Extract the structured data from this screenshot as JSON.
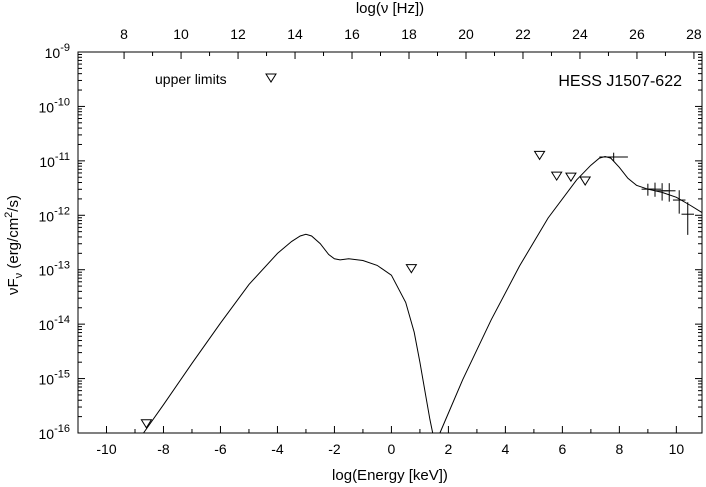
{
  "chart_data": {
    "type": "scatter",
    "title": "HESS J1507-622",
    "xlabel": "log(Energy [keV])",
    "ylabel_main": "νF",
    "ylabel_sub": "ν",
    "ylabel_units_a": " (erg/cm",
    "ylabel_units_sup": "2",
    "ylabel_units_b": "/s)",
    "top_xlabel": "log(ν [Hz])",
    "xlim": [
      -11,
      10.9
    ],
    "ylim_log10": [
      -16,
      -9
    ],
    "x_ticks": [
      -10,
      -8,
      -6,
      -4,
      -2,
      0,
      2,
      4,
      6,
      8,
      10
    ],
    "x_tick_labels": [
      "-10",
      "-8",
      "-6",
      "-4",
      "-2",
      "0",
      "2",
      "4",
      "6",
      "8",
      "10"
    ],
    "top_ticks_lognu": [
      8,
      10,
      12,
      14,
      16,
      18,
      20,
      22,
      24,
      26,
      28
    ],
    "top_tick_labels": [
      "8",
      "10",
      "12",
      "14",
      "16",
      "18",
      "20",
      "22",
      "24",
      "26",
      "28"
    ],
    "y_ticks_exp": [
      -9,
      -10,
      -11,
      -12,
      -13,
      -14,
      -15,
      -16
    ],
    "y_tick_base": "10",
    "y_tick_exps": [
      "-9",
      "-10",
      "-11",
      "-12",
      "-13",
      "-14",
      "-15",
      "-16"
    ],
    "legend": {
      "label": "upper limits",
      "position": "top-left"
    },
    "upper_limits": [
      {
        "x": -8.6,
        "log_y": -15.83
      },
      {
        "x": 0.7,
        "log_y": -12.98
      },
      {
        "x": 5.2,
        "log_y": -10.9
      },
      {
        "x": 5.8,
        "log_y": -11.28
      },
      {
        "x": 6.3,
        "log_y": -11.3
      },
      {
        "x": 6.8,
        "log_y": -11.37
      }
    ],
    "measurements": [
      {
        "x": 7.8,
        "log_y": -10.93,
        "xerr": 0.5,
        "log_yerr_low": 0.08,
        "log_yerr_high": 0.08
      },
      {
        "x": 9.0,
        "log_y": -11.52,
        "xerr": 0.22,
        "log_yerr_low": 0.12,
        "log_yerr_high": 0.1
      },
      {
        "x": 9.25,
        "log_y": -11.52,
        "xerr": 0.22,
        "log_yerr_low": 0.14,
        "log_yerr_high": 0.12
      },
      {
        "x": 9.5,
        "log_y": -11.55,
        "xerr": 0.22,
        "log_yerr_low": 0.18,
        "log_yerr_high": 0.14
      },
      {
        "x": 9.75,
        "log_y": -11.55,
        "xerr": 0.22,
        "log_yerr_low": 0.2,
        "log_yerr_high": 0.14
      },
      {
        "x": 10.1,
        "log_y": -11.72,
        "xerr": 0.22,
        "log_yerr_low": 0.25,
        "log_yerr_high": 0.18
      },
      {
        "x": 10.4,
        "log_y": -11.98,
        "xerr": 0.22,
        "log_yerr_low": 0.38,
        "log_yerr_high": 0.22
      }
    ],
    "model_synchrotron": {
      "x": [
        -8.7,
        -8.0,
        -7.0,
        -6.0,
        -5.0,
        -4.0,
        -3.5,
        -3.2,
        -3.0,
        -2.8,
        -2.5,
        -2.2,
        -2.0,
        -1.8,
        -1.5,
        -1.0,
        -0.5,
        0.0,
        0.5,
        0.8,
        1.0,
        1.2,
        1.35,
        1.45
      ],
      "log_y": [
        -16.0,
        -15.48,
        -14.72,
        -13.98,
        -13.27,
        -12.7,
        -12.48,
        -12.38,
        -12.35,
        -12.38,
        -12.52,
        -12.72,
        -12.8,
        -12.82,
        -12.8,
        -12.83,
        -12.92,
        -13.1,
        -13.6,
        -14.15,
        -14.7,
        -15.3,
        -15.75,
        -16.0
      ]
    },
    "model_ic": {
      "x": [
        1.7,
        2.5,
        3.5,
        4.5,
        5.5,
        6.5,
        7.0,
        7.3,
        7.5,
        7.7,
        8.0,
        8.3,
        8.6,
        9.0,
        9.5,
        10.0,
        10.5,
        10.9
      ],
      "log_y": [
        -16.0,
        -15.02,
        -13.92,
        -12.93,
        -12.05,
        -11.35,
        -11.08,
        -10.95,
        -10.92,
        -10.95,
        -11.12,
        -11.32,
        -11.45,
        -11.52,
        -11.58,
        -11.67,
        -11.82,
        -11.95
      ]
    }
  }
}
